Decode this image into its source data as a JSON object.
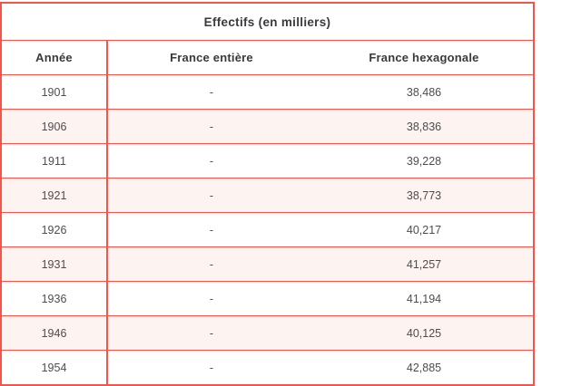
{
  "chart_data": {
    "type": "table",
    "title": "Effectifs (en milliers)",
    "columns": [
      "Année",
      "France entière",
      "France hexagonale"
    ],
    "rows": [
      [
        "1901",
        "-",
        "38,486"
      ],
      [
        "1906",
        "-",
        "38,836"
      ],
      [
        "1911",
        "-",
        "39,228"
      ],
      [
        "1921",
        "-",
        "38,773"
      ],
      [
        "1926",
        "-",
        "40,217"
      ],
      [
        "1931",
        "-",
        "41,257"
      ],
      [
        "1936",
        "-",
        "41,194"
      ],
      [
        "1946",
        "-",
        "40,125"
      ],
      [
        "1954",
        "-",
        "42,885"
      ]
    ],
    "notes": "Last row (1954) is cut off at the bottom edge of the screenshot"
  },
  "colors": {
    "border": "#f0564b",
    "alt_row_background": "#fdf3f1",
    "header_text": "#3a3a3a",
    "body_text": "#4d4d4d",
    "page_background": "#ffffff"
  }
}
